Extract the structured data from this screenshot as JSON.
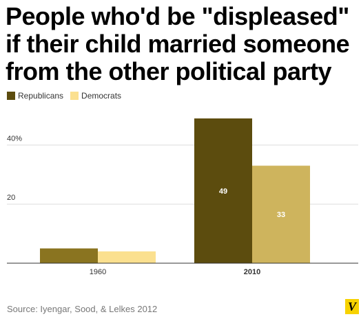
{
  "title": {
    "line1": "People who'd be \"displeased\"",
    "line2": "if their child married someone",
    "line3": "from the other political party"
  },
  "source": "Source: Iyengar, Sood, & Lelkes 2012",
  "logo_text": "V",
  "colors": {
    "republicans_1960": "#8a7420",
    "republicans_2010": "#5c4c0e",
    "democrats_1960": "#fbe08f",
    "democrats_2010": "#ceb45d",
    "grid": "#dddddd",
    "axis": "#333333"
  },
  "chart_data": {
    "type": "bar",
    "categories": [
      "1960",
      "2010"
    ],
    "series": [
      {
        "name": "Republicans",
        "values": [
          5,
          49
        ]
      },
      {
        "name": "Democrats",
        "values": [
          4,
          33
        ]
      }
    ],
    "data_labels": [
      {
        "series": 0,
        "category": 1,
        "text": "49"
      },
      {
        "series": 1,
        "category": 1,
        "text": "33"
      }
    ],
    "yticks": [
      {
        "value": 20,
        "label": "20"
      },
      {
        "value": 40,
        "label": "40%"
      }
    ],
    "ylim": [
      0,
      52
    ],
    "grid": true,
    "legend": "top-left",
    "bold_category": "2010"
  }
}
